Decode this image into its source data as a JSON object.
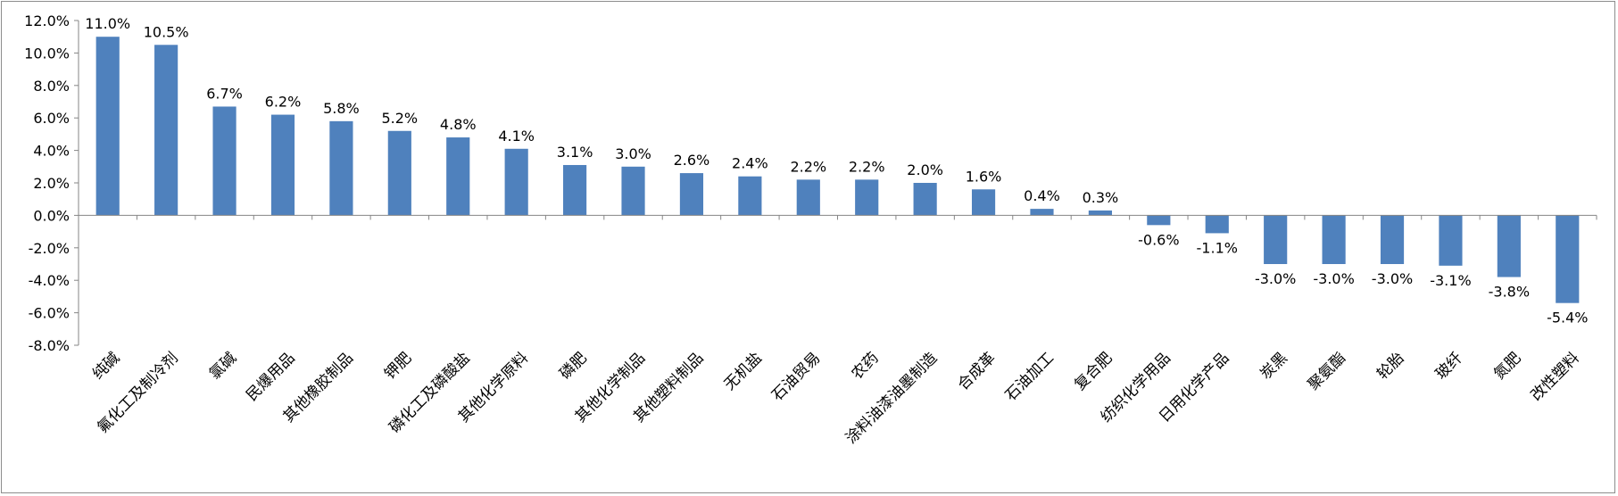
{
  "chart_data": {
    "type": "bar",
    "title": "",
    "xlabel": "",
    "ylabel": "",
    "ylim": [
      -8.0,
      12.0
    ],
    "ytick_step": 2.0,
    "ytick_labels": [
      "12.0%",
      "10.0%",
      "8.0%",
      "6.0%",
      "4.0%",
      "2.0%",
      "0.0%",
      "-2.0%",
      "-4.0%",
      "-6.0%",
      "-8.0%"
    ],
    "grid": false,
    "legend": "none",
    "bar_color": "#4f81bd",
    "categories": [
      "纯碱",
      "氟化工及制冷剂",
      "氯碱",
      "民爆用品",
      "其他橡胶制品",
      "钾肥",
      "磷化工及磷酸盐",
      "其他化学原料",
      "磷肥",
      "其他化学制品",
      "其他塑料制品",
      "无机盐",
      "石油贸易",
      "农药",
      "涂料油漆油墨制造",
      "合成革",
      "石油加工",
      "复合肥",
      "纺织化学用品",
      "日用化学产品",
      "炭黑",
      "聚氨酯",
      "轮胎",
      "玻纤",
      "氮肥",
      "改性塑料"
    ],
    "values": [
      11.0,
      10.5,
      6.7,
      6.2,
      5.8,
      5.2,
      4.8,
      4.1,
      3.1,
      3.0,
      2.6,
      2.4,
      2.2,
      2.2,
      2.0,
      1.6,
      0.4,
      0.3,
      -0.6,
      -1.1,
      -3.0,
      -3.0,
      -3.0,
      -3.1,
      -3.8,
      -5.4
    ],
    "data_labels": [
      "11.0%",
      "10.5%",
      "6.7%",
      "6.2%",
      "5.8%",
      "5.2%",
      "4.8%",
      "4.1%",
      "3.1%",
      "3.0%",
      "2.6%",
      "2.4%",
      "2.2%",
      "2.2%",
      "2.0%",
      "1.6%",
      "0.4%",
      "0.3%",
      "-0.6%",
      "-1.1%",
      "-3.0%",
      "-3.0%",
      "-3.0%",
      "-3.1%",
      "-3.8%",
      "-5.4%"
    ]
  }
}
